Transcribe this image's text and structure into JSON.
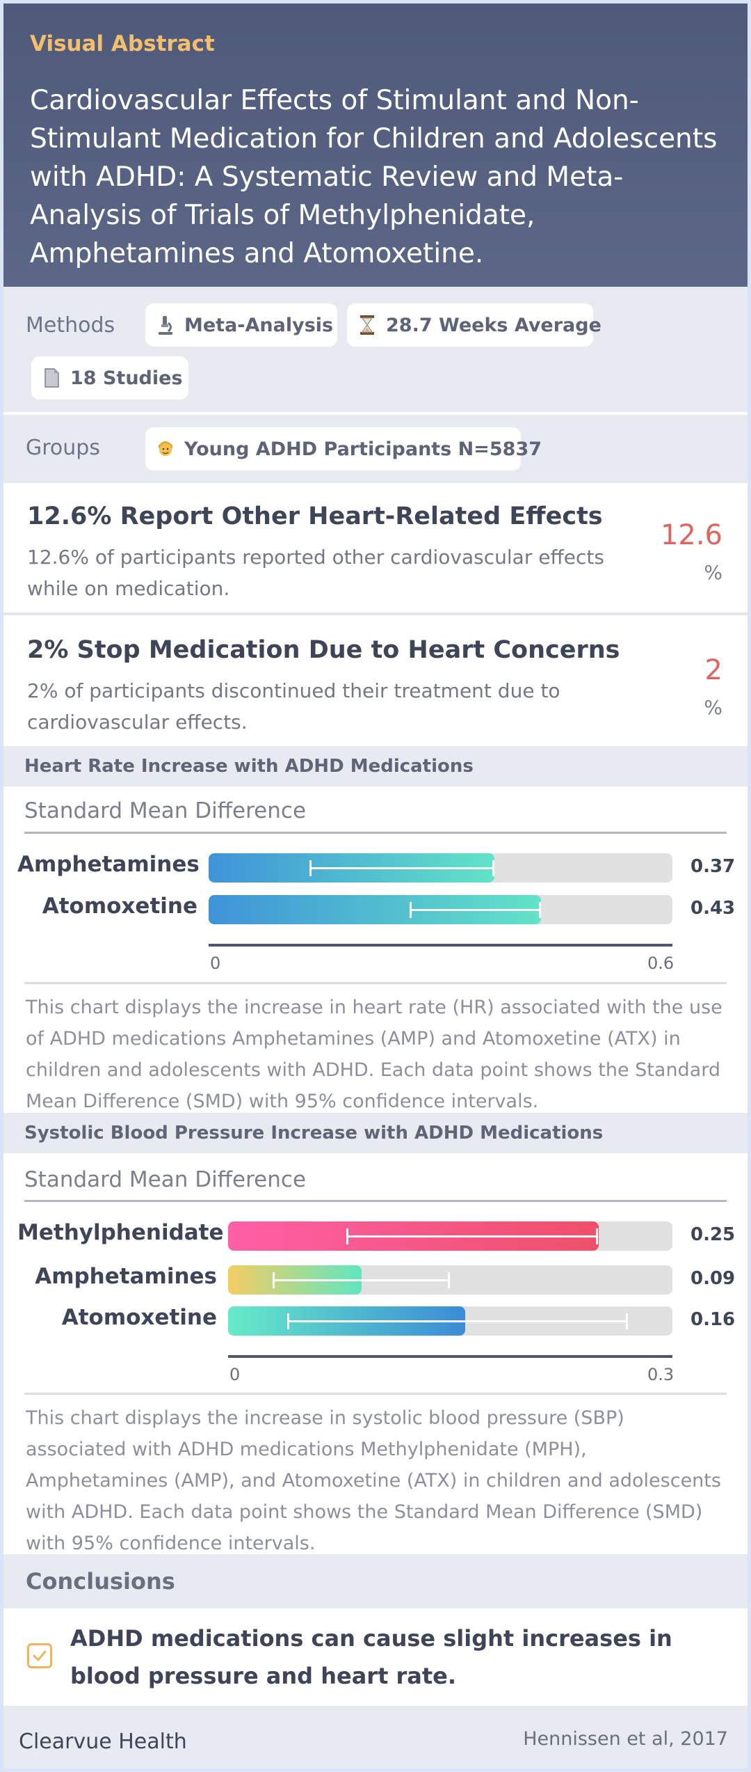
{
  "header": {
    "kicker": "Visual Abstract",
    "title": "Cardiovascular Effects of Stimulant and Non-Stimulant Medication for Children and Adolescents with ADHD: A Systematic Review and Meta-Analysis of Trials of Methylphenidate, Amphetamines and Atomoxetine."
  },
  "methods": {
    "label": "Methods",
    "chips": [
      {
        "icon": "microscope-icon",
        "text": "Meta-Analysis"
      },
      {
        "icon": "hourglass-icon",
        "text": "28.7 Weeks Average"
      },
      {
        "icon": "document-icon",
        "text": "18 Studies"
      }
    ]
  },
  "groups": {
    "label": "Groups",
    "chips": [
      {
        "icon": "person-icon",
        "text": "Young ADHD Participants N=5837"
      }
    ]
  },
  "stats": [
    {
      "title": "12.6% Report Other Heart-Related Effects",
      "description": "12.6% of participants reported other cardiovascular effects while on medication.",
      "value": "12.6",
      "unit": "%"
    },
    {
      "title": "2% Stop Medication Due to Heart Concerns",
      "description": "2% of participants discontinued their treatment due to cardiovascular effects.",
      "value": "2",
      "unit": "%"
    }
  ],
  "chart_data": [
    {
      "type": "bar",
      "orientation": "horizontal",
      "title": "Heart Rate Increase with ADHD Medications",
      "subtitle": "Standard Mean Difference",
      "categories": [
        "Amphetamines",
        "Atomoxetine"
      ],
      "values": [
        0.37,
        0.43
      ],
      "value_labels": [
        "0.37",
        "0.43"
      ],
      "ci_low": [
        0.13,
        0.26
      ],
      "ci_high": [
        0.37,
        0.43
      ],
      "xlim": [
        0,
        0.6
      ],
      "tick_labels": [
        "0",
        "0.6"
      ],
      "description": "This chart displays the increase in heart rate (HR) associated with the use of ADHD medications Amphetamines (AMP) and Atomoxetine (ATX) in children and adolescents with ADHD. Each data point shows the Standard Mean Difference (SMD) with 95% confidence intervals."
    },
    {
      "type": "bar",
      "orientation": "horizontal",
      "title": "Systolic Blood Pressure Increase with ADHD Medications",
      "subtitle": "Standard Mean Difference",
      "categories": [
        "Methylphenidate",
        "Amphetamines",
        "Atomoxetine"
      ],
      "values": [
        0.25,
        0.09,
        0.16
      ],
      "value_labels": [
        "0.25",
        "0.09",
        "0.16"
      ],
      "ci_low": [
        0.08,
        0.03,
        0.04
      ],
      "ci_high": [
        0.25,
        0.15,
        0.27
      ],
      "xlim": [
        0,
        0.3
      ],
      "tick_labels": [
        "0",
        "0.3"
      ],
      "description": "This chart displays the increase in systolic blood pressure (SBP) associated with ADHD medications Methylphenidate (MPH), Amphetamines (AMP), and Atomoxetine (ATX) in children and adolescents with ADHD. Each data point shows the Standard Mean Difference (SMD) with 95% confidence intervals."
    }
  ],
  "colors": {
    "hr_gradient": [
      "#3f93d8",
      "#62e3c8"
    ],
    "sbp_gradients": [
      [
        "#ff5fa6",
        "#f04f6a"
      ],
      [
        "#f4cd63",
        "#61e6bf"
      ],
      [
        "#66ebc8",
        "#3b8bd6"
      ]
    ],
    "accent": "#e0645e"
  },
  "conclusions": {
    "label": "Conclusions",
    "text": "ADHD medications can cause slight increases in blood pressure and heart rate."
  },
  "footer": {
    "brand": "Clearvue Health",
    "citation": "Hennissen et al, 2017"
  }
}
